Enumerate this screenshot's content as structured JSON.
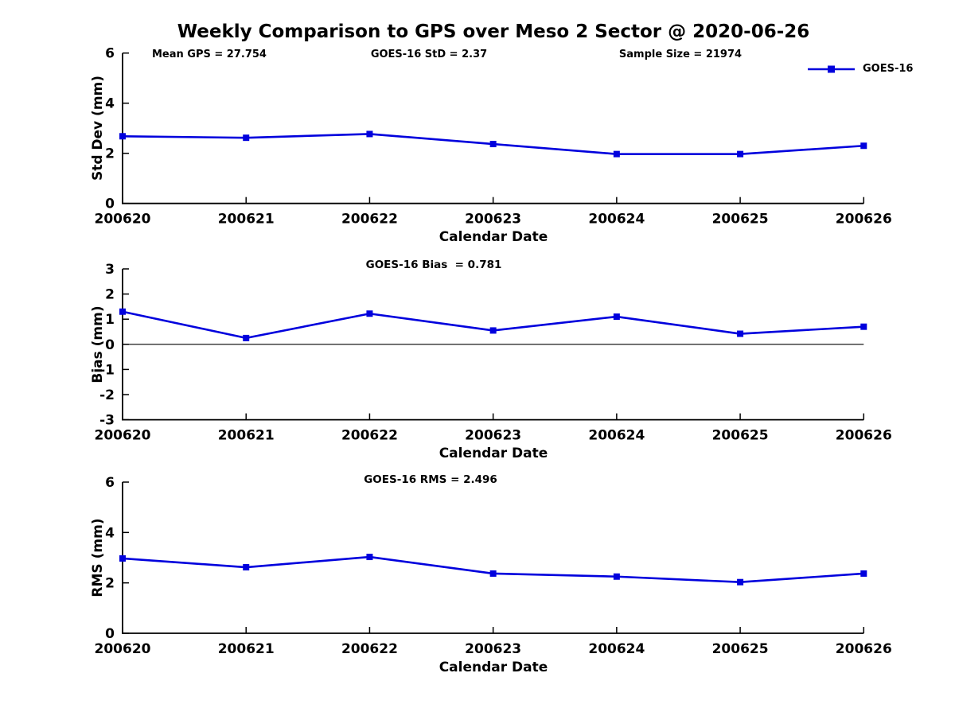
{
  "title": "Weekly Comparison to GPS over Meso 2 Sector @ 2020-06-26",
  "header_annotations": {
    "mean_gps": "Mean GPS = 27.754",
    "goes_std": "GOES-16 StD = 2.37",
    "sample_size": "Sample Size = 21974"
  },
  "legend": {
    "label": "GOES-16",
    "location": "upper right outside plot"
  },
  "series_color": "#0000dd",
  "chart_data": [
    {
      "type": "line",
      "id": "std-dev",
      "annotation": "",
      "ylabel": "Std Dev (mm)",
      "xlabel": "Calendar Date",
      "ylim": [
        0,
        6
      ],
      "yticks": [
        0,
        2,
        4,
        6
      ],
      "grid": false,
      "zero_line": false,
      "categories": [
        "200620",
        "200621",
        "200622",
        "200623",
        "200624",
        "200625",
        "200626"
      ],
      "series": [
        {
          "name": "GOES-16",
          "marker": "square",
          "values": [
            2.68,
            2.62,
            2.77,
            2.37,
            1.97,
            1.97,
            2.3
          ]
        }
      ]
    },
    {
      "type": "line",
      "id": "bias",
      "annotation": "GOES-16 Bias  = 0.781",
      "ylabel": "Bias (mm)",
      "xlabel": "Calendar Date",
      "ylim": [
        -3,
        3
      ],
      "yticks": [
        -3,
        -2,
        -1,
        0,
        1,
        2,
        3
      ],
      "grid": false,
      "zero_line": true,
      "categories": [
        "200620",
        "200621",
        "200622",
        "200623",
        "200624",
        "200625",
        "200626"
      ],
      "series": [
        {
          "name": "GOES-16",
          "marker": "square",
          "values": [
            1.3,
            0.25,
            1.22,
            0.55,
            1.1,
            0.42,
            0.7
          ]
        }
      ]
    },
    {
      "type": "line",
      "id": "rms",
      "annotation": "GOES-16 RMS = 2.496",
      "ylabel": "RMS (mm)",
      "xlabel": "Calendar Date",
      "ylim": [
        0,
        6
      ],
      "yticks": [
        0,
        2,
        4,
        6
      ],
      "grid": false,
      "zero_line": false,
      "categories": [
        "200620",
        "200621",
        "200622",
        "200623",
        "200624",
        "200625",
        "200626"
      ],
      "series": [
        {
          "name": "GOES-16",
          "marker": "square",
          "values": [
            2.97,
            2.62,
            3.03,
            2.37,
            2.25,
            2.03,
            2.37
          ]
        }
      ]
    }
  ]
}
